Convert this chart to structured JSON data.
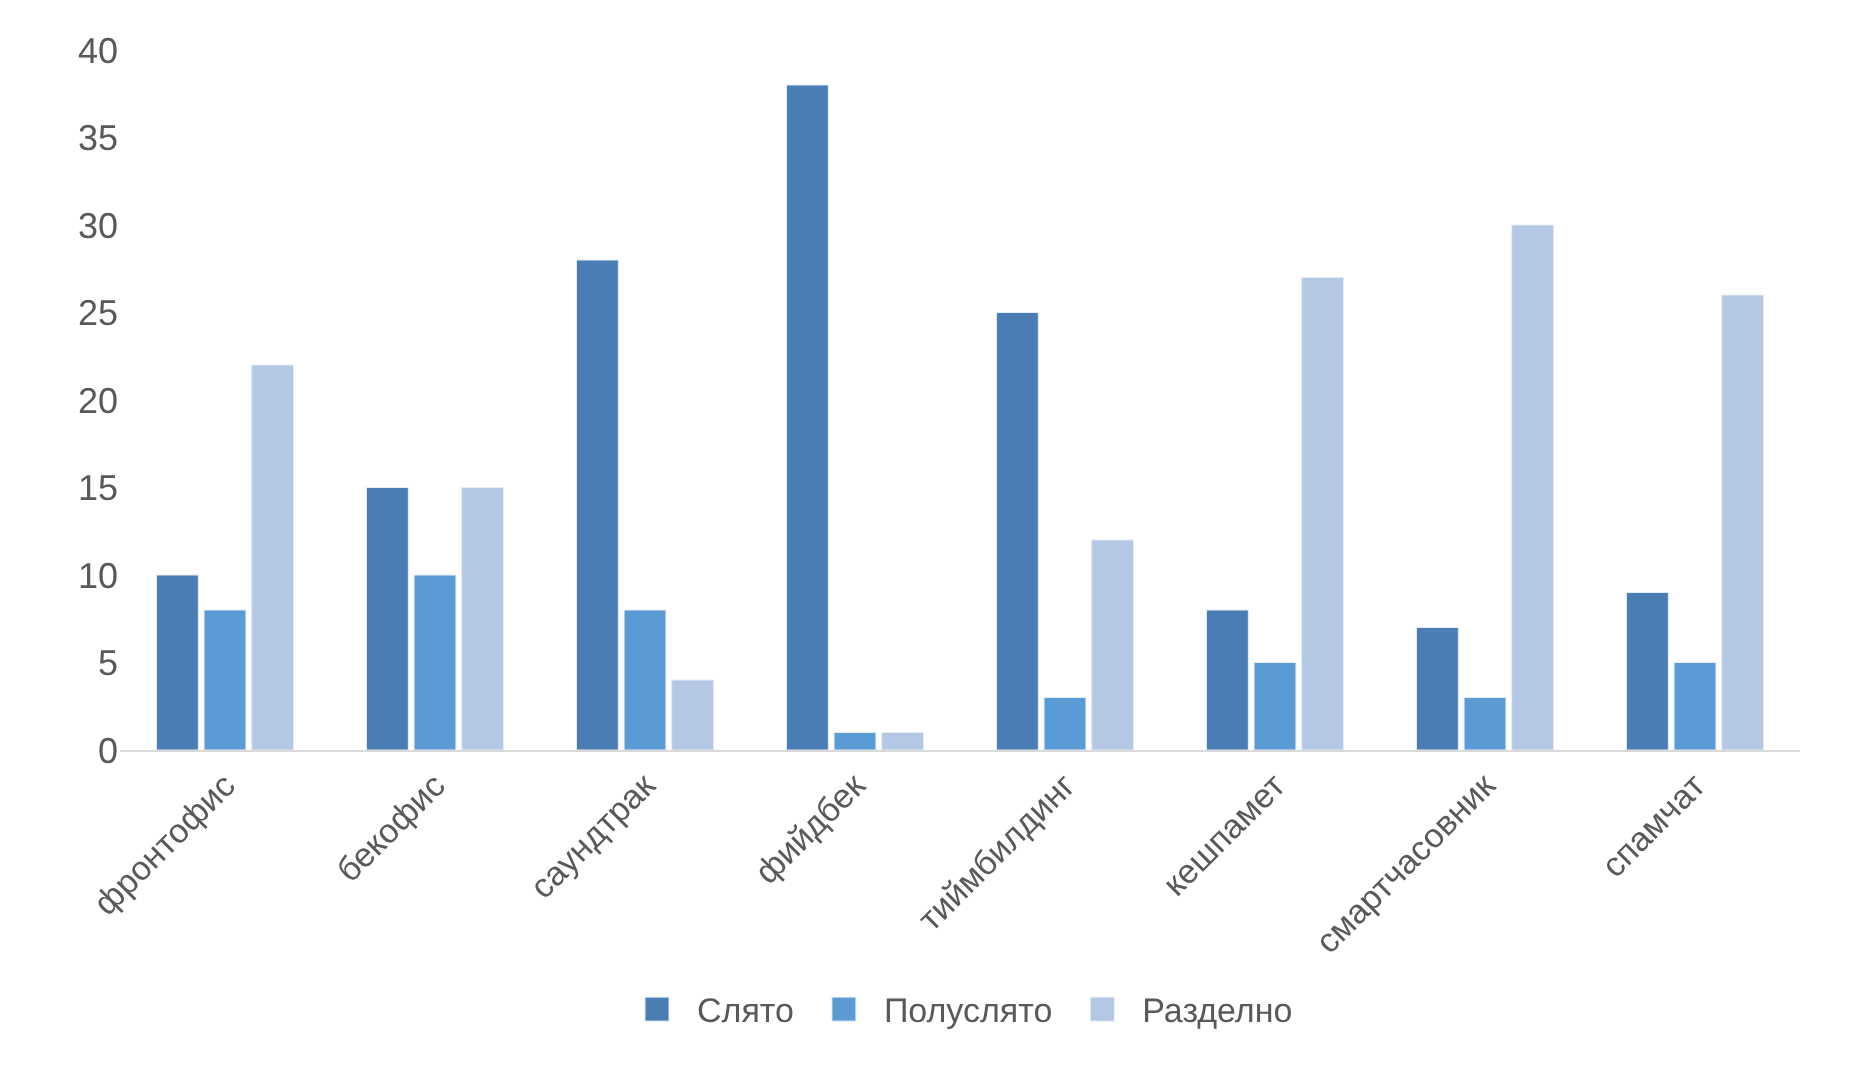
{
  "chart_data": {
    "type": "bar",
    "categories": [
      "фронтофис",
      "бекофис",
      "саундтрак",
      "фийдбек",
      "тиймбилдинг",
      "кешпамет",
      "смартчасовник",
      "спамчат"
    ],
    "series": [
      {
        "name": "Слято",
        "color": "#4a7db3",
        "values": [
          10,
          15,
          28,
          38,
          25,
          8,
          7,
          9
        ]
      },
      {
        "name": "Полуслято",
        "color": "#5b9bd5",
        "values": [
          8,
          10,
          8,
          1,
          3,
          5,
          3,
          5
        ]
      },
      {
        "name": "Разделно",
        "color": "#b4c8e6",
        "values": [
          22,
          15,
          4,
          1,
          12,
          27,
          30,
          26
        ]
      }
    ],
    "ylim": [
      0,
      40
    ],
    "yticks": [
      0,
      5,
      10,
      15,
      20,
      25,
      30,
      35,
      40
    ],
    "legend": "bottom"
  }
}
